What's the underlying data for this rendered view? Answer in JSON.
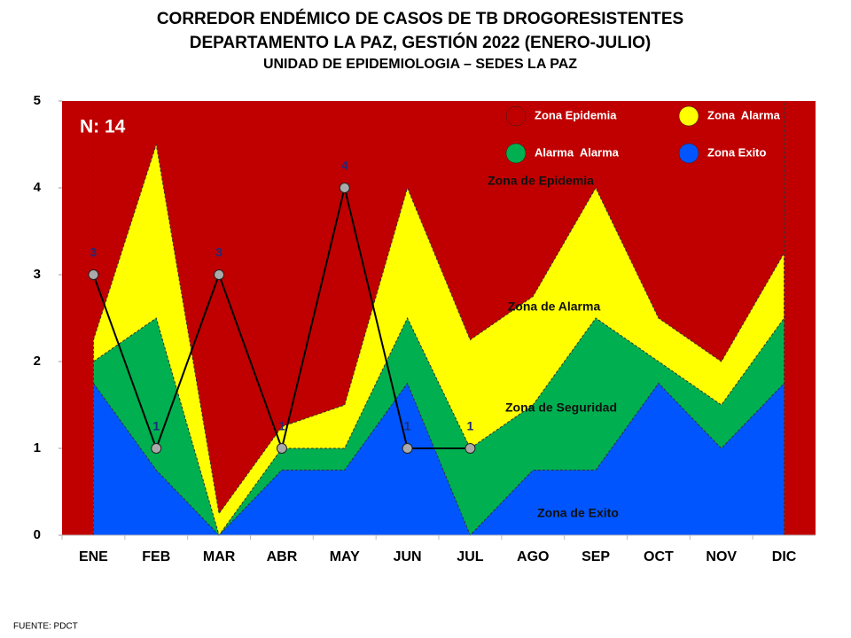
{
  "chart_data": {
    "type": "area",
    "title": "CORREDOR ENDÉMICO DE CASOS DE TB DROGORESISTENTES",
    "subtitle": "DEPARTAMENTO  LA PAZ, GESTIÓN 2022 (ENERO-JULIO)",
    "subtitle2": "UNIDAD DE EPIDEMIOLOGIA – SEDES LA PAZ",
    "source": "FUENTE:   PDCT",
    "n_label": "N: 14",
    "categories": [
      "ENE",
      "FEB",
      "MAR",
      "ABR",
      "MAY",
      "JUN",
      "JUL",
      "AGO",
      "SEP",
      "OCT",
      "NOV",
      "DIC"
    ],
    "background": {
      "name": "Zona Epidemia",
      "color": "#c00000"
    },
    "series": [
      {
        "name": "Zona  Alarma",
        "color": "#ffff00",
        "values": [
          2.25,
          4.5,
          0.25,
          1.25,
          1.5,
          4.0,
          2.25,
          2.75,
          4.0,
          2.5,
          2.0,
          3.25
        ]
      },
      {
        "name": "Alarma  Alarma",
        "color": "#00b050",
        "values": [
          2.0,
          2.5,
          0,
          1.0,
          1.0,
          2.5,
          1.0,
          1.5,
          2.5,
          2.0,
          1.5,
          2.5
        ]
      },
      {
        "name": "Zona Exito",
        "color": "#0055ff",
        "values": [
          1.75,
          0.75,
          0,
          0.75,
          0.75,
          1.75,
          0,
          0.75,
          0.75,
          1.75,
          1.0,
          1.75
        ]
      }
    ],
    "cases": {
      "color": "#000000",
      "values": [
        3,
        1,
        3,
        1,
        4,
        1,
        1,
        null,
        null,
        null,
        null,
        null
      ]
    },
    "annotations": [
      "Zona de Epidemia",
      "Zona de Alarma",
      "Zona de Seguridad",
      "Zona de Exito"
    ],
    "ylim": [
      0,
      5
    ],
    "yticks": [
      0,
      1,
      2,
      3,
      4,
      5
    ]
  }
}
